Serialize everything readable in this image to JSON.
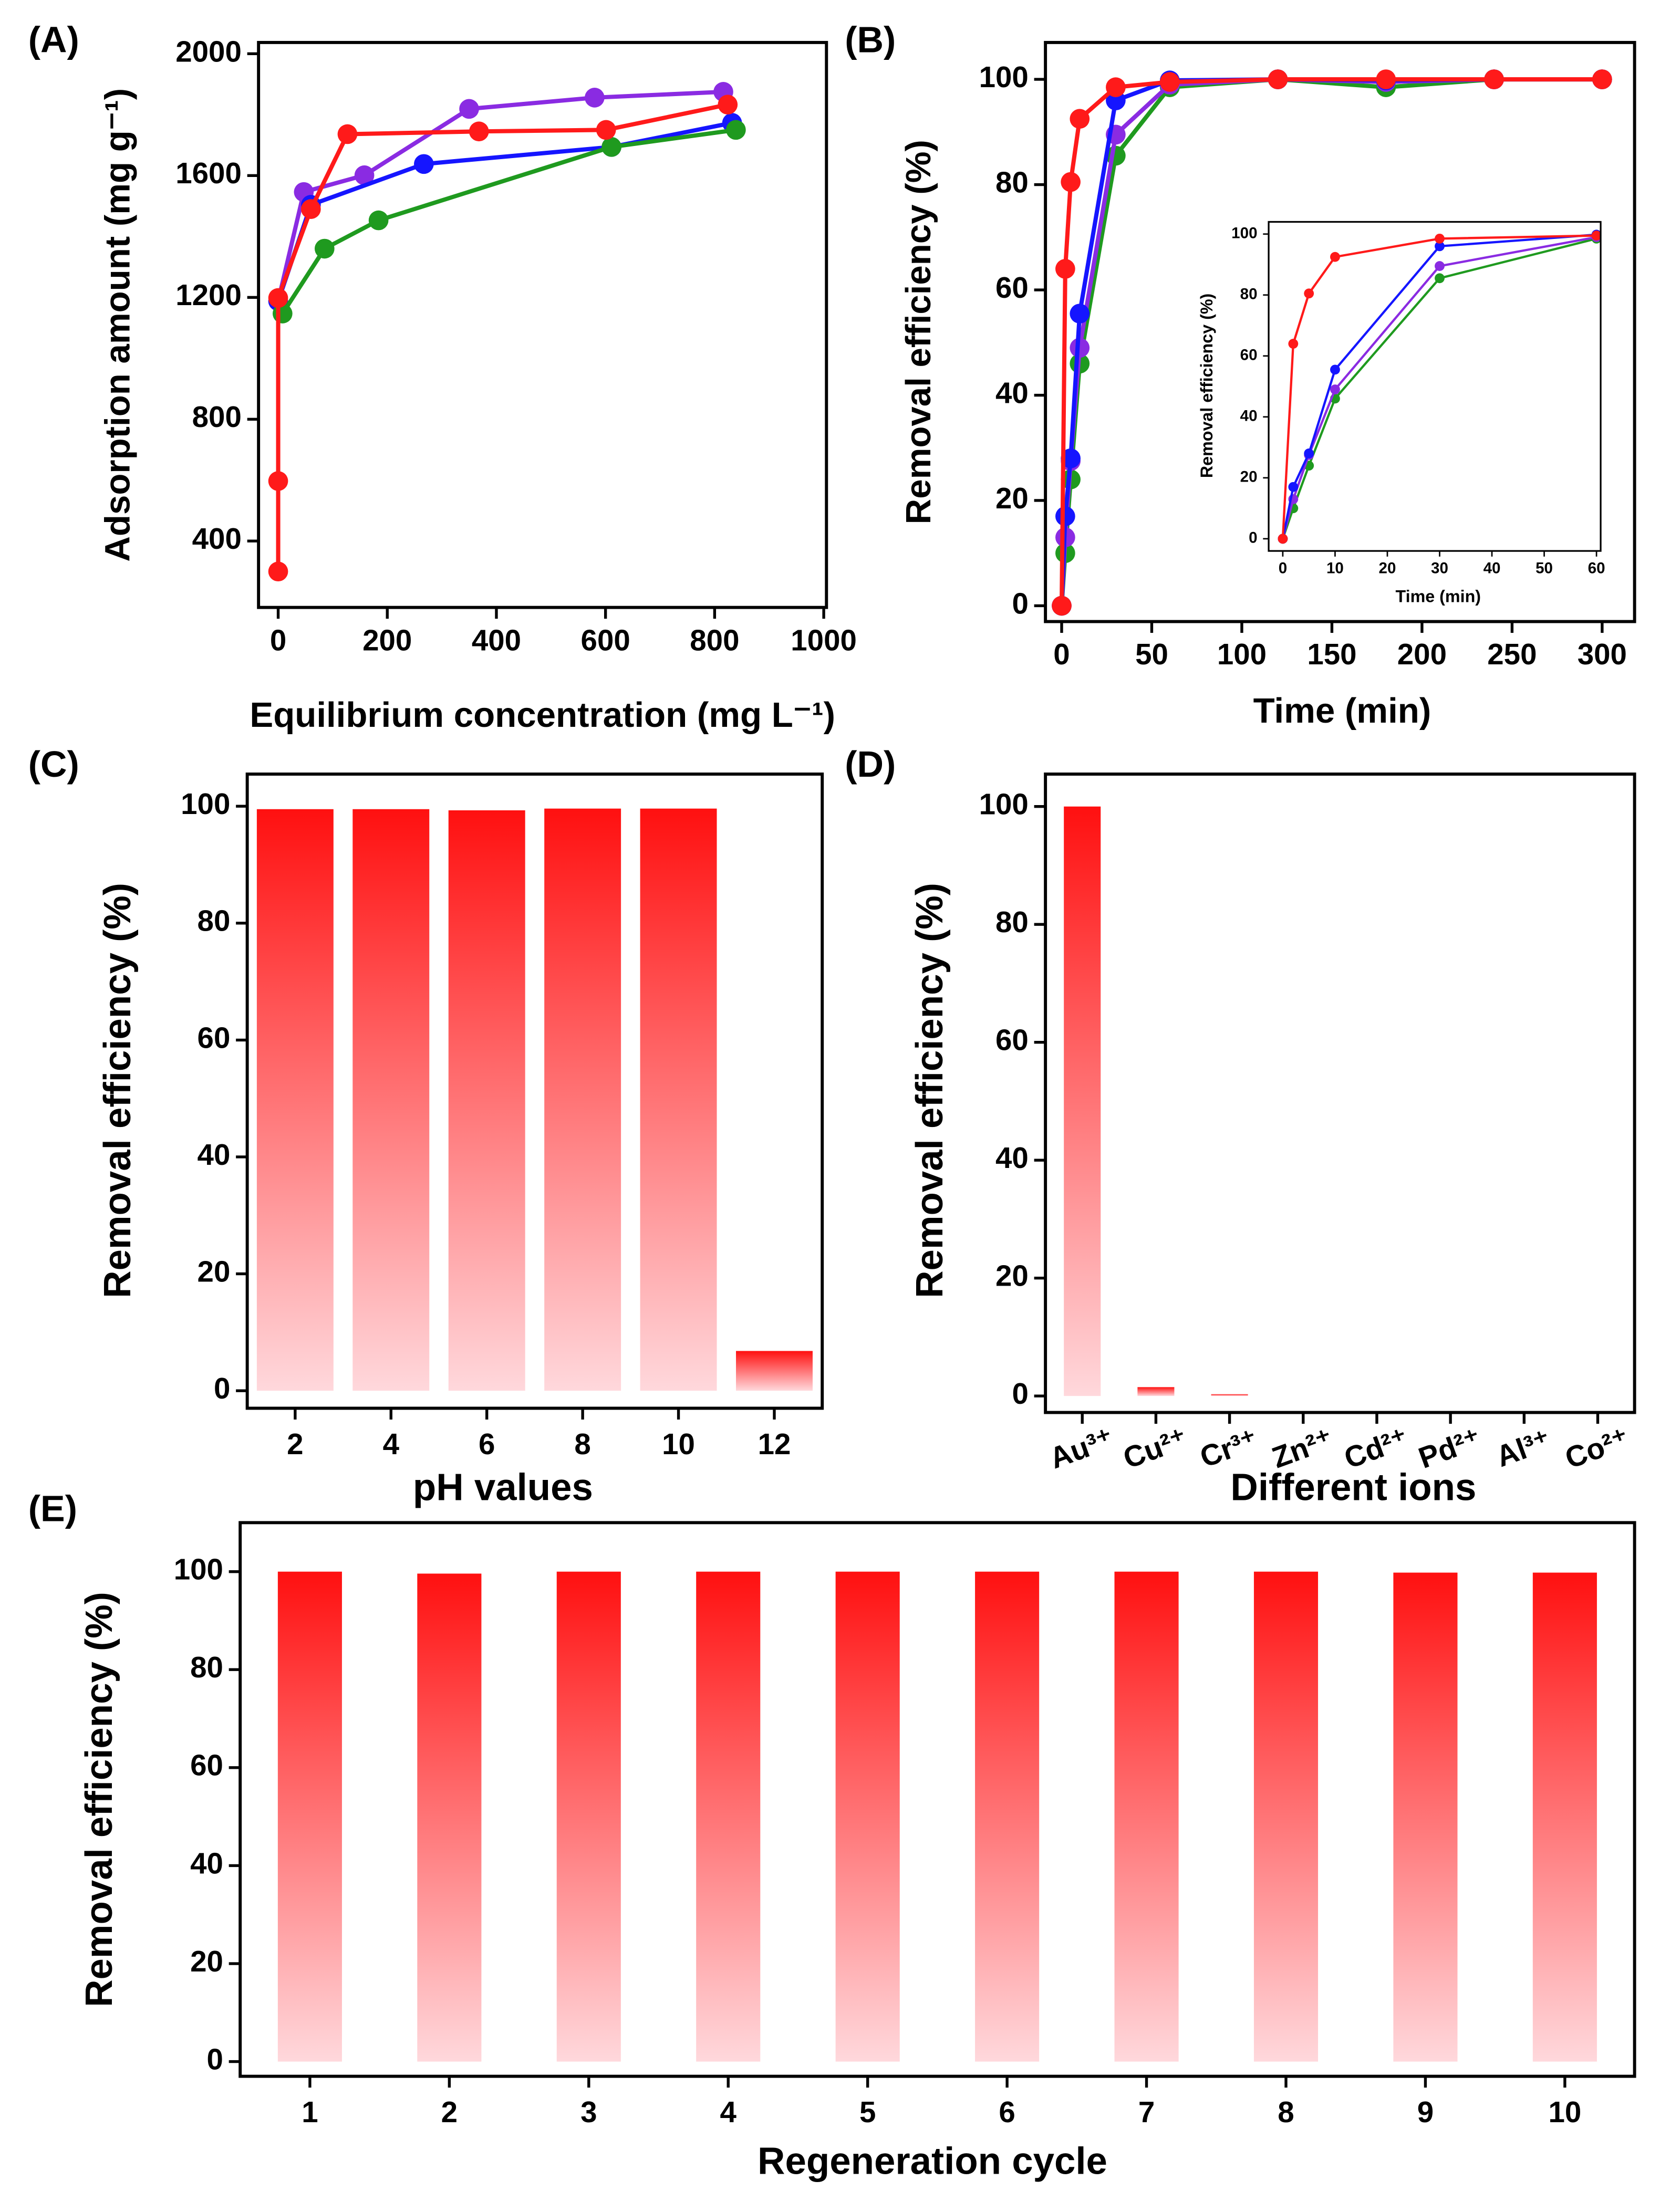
{
  "chart_data": [
    {
      "type": "line",
      "panel_label": "(A)",
      "x_label": "Equilibrium concentration (mg L⁻¹)",
      "y_label": "Adsorption amount (mg g⁻¹)",
      "xlim": [
        -36,
        1005
      ],
      "ylim": [
        182,
        2037
      ],
      "xticks": [
        0,
        200,
        400,
        600,
        800,
        1000
      ],
      "yticks": [
        400,
        800,
        1200,
        1600,
        2000
      ],
      "series": [
        {
          "color": "#8a2be2",
          "x": [
            0,
            47,
            158,
            350,
            580,
            816
          ],
          "values": [
            1188,
            1546,
            1601,
            1819,
            1856,
            1875
          ]
        },
        {
          "color": "#1515ff",
          "x": [
            0,
            60,
            267,
            611,
            832
          ],
          "values": [
            1188,
            1504,
            1638,
            1694,
            1773
          ]
        },
        {
          "color": "#1f9a1f",
          "x": [
            8,
            85,
            184,
            611,
            839
          ],
          "values": [
            1147,
            1360,
            1453,
            1694,
            1750
          ]
        },
        {
          "color": "#ff1a1a",
          "x": [
            0,
            0,
            0,
            60,
            127,
            368,
            601,
            824
          ],
          "values": [
            300,
            597,
            1198,
            1490,
            1736,
            1745,
            1750,
            1833
          ]
        }
      ]
    },
    {
      "type": "line",
      "panel_label": "(B)",
      "x_label": "Time (min)",
      "y_label": "Removal efficiency (%)",
      "xlim": [
        -9,
        318
      ],
      "ylim": [
        -3,
        107
      ],
      "xticks": [
        0,
        50,
        100,
        150,
        200,
        250,
        300
      ],
      "yticks": [
        0,
        20,
        40,
        60,
        80,
        100
      ],
      "series": [
        {
          "color": "#1f9a1f",
          "x": [
            0,
            2,
            5,
            10,
            30,
            60,
            120,
            180,
            240,
            300
          ],
          "values": [
            0,
            10,
            24,
            46,
            85.5,
            98.5,
            100,
            98.5,
            100,
            100
          ]
        },
        {
          "color": "#8a2be2",
          "x": [
            0,
            2,
            5,
            10,
            30,
            60,
            120,
            180,
            240,
            300
          ],
          "values": [
            0,
            13,
            27.5,
            49,
            89.5,
            99,
            100,
            99.5,
            100,
            100
          ]
        },
        {
          "color": "#1515ff",
          "x": [
            0,
            2,
            5,
            10,
            30,
            60,
            120,
            180,
            240,
            300
          ],
          "values": [
            0,
            17,
            28,
            55.5,
            96,
            99.8,
            100,
            99.8,
            100,
            100
          ]
        },
        {
          "color": "#ff1a1a",
          "x": [
            0,
            2,
            5,
            10,
            30,
            60,
            120,
            180,
            240,
            300
          ],
          "values": [
            0,
            64,
            80.5,
            92.5,
            98.5,
            99.5,
            100,
            100,
            100,
            100
          ]
        }
      ]
    },
    {
      "type": "line",
      "x_label": "Time (min)",
      "y_label": "Removal efficiency (%)",
      "xlim": [
        -2.7,
        60.8
      ],
      "ylim": [
        -4,
        104
      ],
      "xticks": [
        0,
        10,
        20,
        30,
        40,
        50,
        60
      ],
      "yticks": [
        0,
        20,
        40,
        60,
        80,
        100
      ],
      "series": [
        {
          "color": "#1f9a1f",
          "x": [
            0,
            2,
            5,
            10,
            30,
            60
          ],
          "values": [
            0,
            10,
            24,
            46,
            85.5,
            98.5
          ]
        },
        {
          "color": "#8a2be2",
          "x": [
            0,
            2,
            5,
            10,
            30,
            60
          ],
          "values": [
            0,
            13,
            27.5,
            49,
            89.5,
            99
          ]
        },
        {
          "color": "#1515ff",
          "x": [
            0,
            2,
            5,
            10,
            30,
            60
          ],
          "values": [
            0,
            17,
            28,
            55.5,
            96,
            99.8
          ]
        },
        {
          "color": "#ff1a1a",
          "x": [
            0,
            2,
            5,
            10,
            30,
            60
          ],
          "values": [
            0,
            64,
            80.5,
            92.5,
            98.5,
            99.5
          ]
        }
      ]
    },
    {
      "type": "bar",
      "panel_label": "(C)",
      "x_label": "pH values",
      "y_label": "Removal efficiency (%)",
      "categories": [
        "2",
        "4",
        "6",
        "8",
        "10",
        "12"
      ],
      "values": [
        99.5,
        99.5,
        99.3,
        99.6,
        99.6,
        6.8
      ],
      "ylim": [
        -3,
        105.5
      ],
      "yticks": [
        0,
        20,
        40,
        60,
        80,
        100
      ],
      "color": "#ff1010",
      "color_light": "#ffd8dc"
    },
    {
      "type": "bar",
      "panel_label": "(D)",
      "x_label": "Different ions",
      "y_label": "Removal efficiency (%)",
      "categories": [
        "Au³⁺",
        "Cu²⁺",
        "Cr³⁺",
        "Zn²⁺",
        "Cd²⁺",
        "Pd²⁺",
        "Al³⁺",
        "Co²⁺"
      ],
      "values": [
        100,
        1.5,
        0.3,
        0,
        0,
        0,
        0,
        0
      ],
      "ylim": [
        -2.8,
        105.5
      ],
      "yticks": [
        0,
        20,
        40,
        60,
        80,
        100
      ],
      "color": "#ff1010",
      "color_light": "#ffd8dc"
    },
    {
      "type": "bar",
      "panel_label": "(E)",
      "x_label": "Regeneration cycle",
      "y_label": "Removal efficiency (%)",
      "categories": [
        "1",
        "2",
        "3",
        "4",
        "5",
        "6",
        "7",
        "8",
        "9",
        "10"
      ],
      "values": [
        100,
        99.6,
        100,
        100,
        100,
        100,
        100,
        100,
        99.8,
        99.8
      ],
      "ylim": [
        -3,
        110
      ],
      "yticks": [
        0,
        20,
        40,
        60,
        80,
        100
      ],
      "color": "#ff1010",
      "color_light": "#ffd8dc"
    }
  ]
}
